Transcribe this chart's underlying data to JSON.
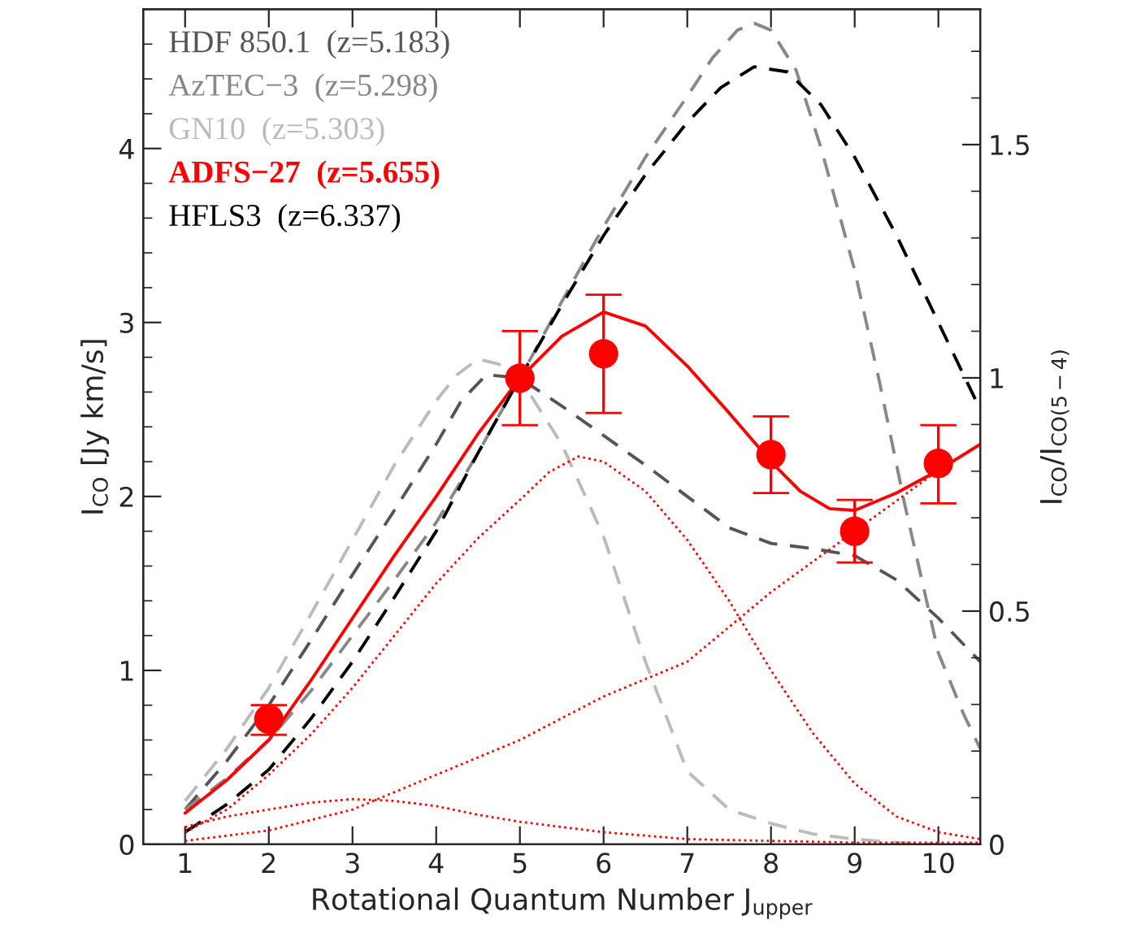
{
  "chart_data": {
    "type": "line",
    "xlabel": "Rotational Quantum Number J$_{upper}$",
    "ylabel": "I$_{CO}$ [Jy km/s]",
    "y2label": "I$_{CO}$/I$_{CO(5−4)}$",
    "xlim": [
      0.5,
      10.5
    ],
    "xticks": [
      1,
      2,
      3,
      4,
      5,
      6,
      7,
      8,
      9,
      10
    ],
    "ylim": [
      0,
      4.8
    ],
    "yticks": [
      0,
      1,
      2,
      3,
      4
    ],
    "y2lim": [
      0,
      1.79
    ],
    "y2ticks": [
      0,
      0.5,
      1,
      1.5
    ],
    "legend": "top left",
    "grid": false,
    "series": [
      {
        "name": "HDF 850.1  (z=5.183)",
        "color": "#555555",
        "line_style": "dashed",
        "x": [
          1,
          1.5,
          2,
          2.5,
          3,
          3.5,
          4,
          4.3,
          4.6,
          5,
          5.5,
          6,
          6.5,
          7,
          7.5,
          8,
          8.5,
          9,
          9.5,
          10,
          10.5
        ],
        "values": [
          0.2,
          0.48,
          0.8,
          1.17,
          1.55,
          1.92,
          2.3,
          2.55,
          2.7,
          2.68,
          2.52,
          2.35,
          2.18,
          2.0,
          1.82,
          1.73,
          1.7,
          1.66,
          1.52,
          1.3,
          1.05
        ]
      },
      {
        "name": "AzTEC−3  (z=5.298)",
        "color": "#888888",
        "line_style": "dashed",
        "x": [
          1,
          1.5,
          2,
          2.5,
          3,
          3.5,
          4,
          4.5,
          5,
          5.5,
          6,
          6.5,
          7,
          7.3,
          7.6,
          7.8,
          8,
          8.3,
          8.6,
          9,
          9.3,
          9.6,
          10,
          10.3,
          10.5
        ],
        "values": [
          0.2,
          0.38,
          0.6,
          0.88,
          1.2,
          1.52,
          1.85,
          2.25,
          2.68,
          3.12,
          3.55,
          3.95,
          4.3,
          4.52,
          4.68,
          4.72,
          4.68,
          4.45,
          4.0,
          3.3,
          2.65,
          1.95,
          1.1,
          0.75,
          0.55
        ]
      },
      {
        "name": "GN10  (z=5.303)",
        "color": "#bbbbbb",
        "line_style": "dashed",
        "x": [
          1,
          1.5,
          2,
          2.5,
          3,
          3.5,
          4,
          4.25,
          4.5,
          4.75,
          5,
          5.5,
          6,
          6.5,
          7,
          7.5,
          8,
          8.5,
          9,
          9.5,
          10,
          10.5
        ],
        "values": [
          0.25,
          0.55,
          0.9,
          1.32,
          1.75,
          2.18,
          2.55,
          2.7,
          2.79,
          2.76,
          2.68,
          2.3,
          1.77,
          1.05,
          0.42,
          0.2,
          0.12,
          0.06,
          0.03,
          0.01,
          0.0,
          0.0
        ]
      },
      {
        "name": "ADFS−27  (z=5.655)",
        "color": "#ff0000",
        "line_style": "solid",
        "x": [
          1,
          1.5,
          2,
          2.5,
          3,
          3.5,
          4,
          4.5,
          5,
          5.5,
          6,
          6.5,
          7,
          7.5,
          8,
          8.35,
          8.7,
          9,
          9.5,
          10,
          10.5
        ],
        "values": [
          0.18,
          0.37,
          0.6,
          0.94,
          1.3,
          1.66,
          2.0,
          2.36,
          2.68,
          2.92,
          3.06,
          2.98,
          2.75,
          2.48,
          2.2,
          2.03,
          1.93,
          1.92,
          2.02,
          2.15,
          2.3
        ]
      },
      {
        "name": "HFLS3  (z=6.337)",
        "color": "#000000",
        "line_style": "dashed",
        "x": [
          1,
          1.5,
          2,
          2.5,
          3,
          3.5,
          4,
          4.5,
          5,
          5.5,
          6,
          6.5,
          7,
          7.4,
          7.8,
          8.2,
          8.6,
          9,
          9.5,
          10,
          10.5
        ],
        "values": [
          0.07,
          0.23,
          0.43,
          0.72,
          1.05,
          1.42,
          1.8,
          2.25,
          2.68,
          3.1,
          3.5,
          3.85,
          4.15,
          4.35,
          4.47,
          4.44,
          4.25,
          3.95,
          3.5,
          3.0,
          2.5
        ]
      },
      {
        "color": "#ff0000",
        "line_style": "dotted",
        "x": [
          1,
          1.5,
          2,
          2.5,
          3,
          3.5,
          4,
          4.5,
          5,
          5.5,
          6,
          6.5,
          7,
          8,
          9,
          10,
          10.5
        ],
        "values": [
          0.1,
          0.16,
          0.2,
          0.24,
          0.26,
          0.25,
          0.22,
          0.17,
          0.13,
          0.1,
          0.07,
          0.05,
          0.03,
          0.02,
          0.01,
          0.01,
          0.01
        ]
      },
      {
        "color": "#ff0000",
        "line_style": "dotted",
        "x": [
          1,
          1.5,
          2,
          2.5,
          3,
          3.5,
          4,
          4.5,
          5,
          5.35,
          5.7,
          6,
          6.5,
          7,
          7.5,
          8,
          8.5,
          9,
          9.5,
          10,
          10.5
        ],
        "values": [
          0.07,
          0.2,
          0.4,
          0.63,
          0.9,
          1.2,
          1.5,
          1.76,
          1.98,
          2.14,
          2.23,
          2.2,
          2.03,
          1.75,
          1.4,
          1.0,
          0.64,
          0.35,
          0.16,
          0.07,
          0.03
        ]
      },
      {
        "color": "#ff0000",
        "line_style": "dotted",
        "x": [
          1,
          2,
          3,
          4,
          5,
          6,
          7,
          8,
          9,
          10,
          10.5
        ],
        "values": [
          0.02,
          0.08,
          0.2,
          0.4,
          0.6,
          0.85,
          1.05,
          1.45,
          1.8,
          2.15,
          2.3
        ]
      },
      {
        "type": "scatter",
        "marker": "circle",
        "color": "#ff0000",
        "x": [
          2,
          5,
          6,
          8,
          9,
          10
        ],
        "values": [
          0.72,
          2.68,
          2.82,
          2.24,
          1.8,
          2.19
        ],
        "errors": [
          [
            0.63,
            0.8
          ],
          [
            2.41,
            2.95
          ],
          [
            2.48,
            3.16
          ],
          [
            2.02,
            2.46
          ],
          [
            1.62,
            1.98
          ],
          [
            1.96,
            2.41
          ]
        ]
      }
    ]
  }
}
